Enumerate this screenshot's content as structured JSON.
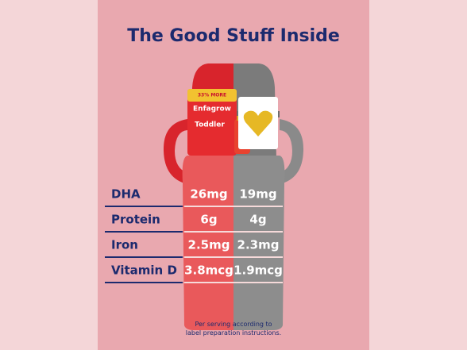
{
  "header": {
    "title": "The Good Stuff Inside"
  },
  "product": {
    "banner": "33% MORE",
    "brand": "Enfagrow",
    "name": "Toddler"
  },
  "table": {
    "rows": [
      [
        "DHA",
        "26mg",
        "19mg"
      ],
      [
        "Protein",
        "6g",
        "4g"
      ],
      [
        "Iron",
        "2.5mg",
        "2.3mg"
      ],
      [
        "Vitamin D",
        "3.8mcg",
        "1.9mcg"
      ]
    ]
  },
  "footnote": [
    "Per serving according to",
    "label preparation instructions."
  ]
}
